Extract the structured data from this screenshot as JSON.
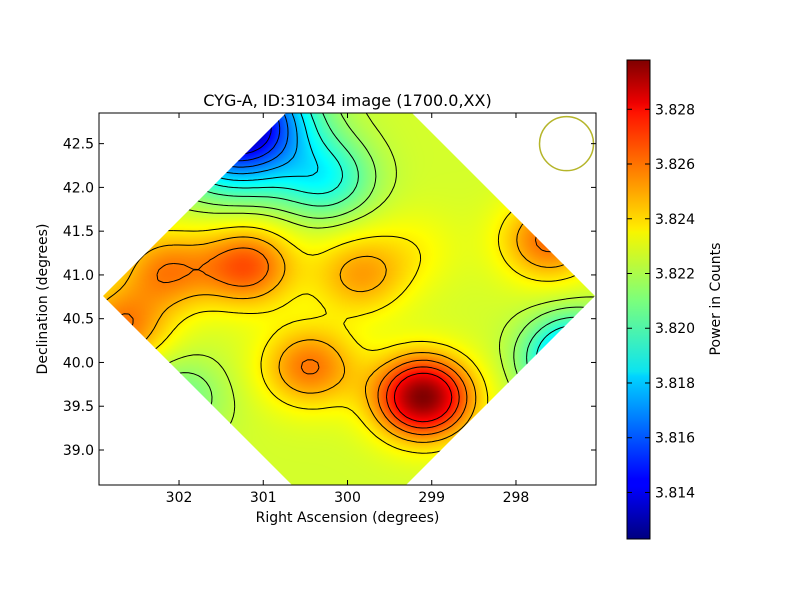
{
  "chart_data": {
    "type": "heatmap",
    "title": "CYG-A, ID:31034 image (1700.0,XX)",
    "xlabel": "Right Ascension (degrees)",
    "ylabel": "Declination (degrees)",
    "xlim": [
      302.95,
      297.05
    ],
    "ylim": [
      38.6,
      42.85
    ],
    "x_ticks": [
      302,
      301,
      300,
      299,
      298
    ],
    "x_tick_labels": [
      "302",
      "301",
      "300",
      "299",
      "298"
    ],
    "y_ticks": [
      39.0,
      39.5,
      40.0,
      40.5,
      41.0,
      41.5,
      42.0,
      42.5
    ],
    "y_tick_labels": [
      "39.0",
      "39.5",
      "40.0",
      "40.5",
      "41.0",
      "41.5",
      "42.0",
      "42.5"
    ],
    "colorbar": {
      "label": "Power in Counts",
      "range": [
        3.8123,
        3.8298
      ],
      "ticks": [
        3.814,
        3.816,
        3.818,
        3.82,
        3.822,
        3.824,
        3.826,
        3.828
      ],
      "tick_labels": [
        "3.814",
        "3.816",
        "3.818",
        "3.820",
        "3.822",
        "3.824",
        "3.826",
        "3.828"
      ],
      "colormap": "jet"
    },
    "contour_levels": [
      3.8145,
      3.8155,
      3.8165,
      3.8175,
      3.8185,
      3.8195,
      3.8205,
      3.8215,
      3.8222,
      3.8235,
      3.8245,
      3.8255,
      3.8265,
      3.8275
    ],
    "footprint": "diamond",
    "beam_marker": {
      "ra": 297.4,
      "dec": 42.5,
      "color": "#b5b52a"
    },
    "features": [
      {
        "kind": "minimum",
        "ra": 301.3,
        "dec": 42.7,
        "value": 3.8123
      },
      {
        "kind": "minimum",
        "ra": 297.3,
        "dec": 40.05,
        "value": 3.8165
      },
      {
        "kind": "maximum",
        "ra": 299.1,
        "dec": 39.6,
        "value": 3.8298
      },
      {
        "kind": "maximum",
        "ra": 301.2,
        "dec": 41.1,
        "value": 3.8262
      },
      {
        "kind": "maximum",
        "ra": 297.6,
        "dec": 41.4,
        "value": 3.8258
      },
      {
        "kind": "maximum",
        "ra": 302.15,
        "dec": 41.05,
        "value": 3.8253
      },
      {
        "kind": "maximum",
        "ra": 300.45,
        "dec": 39.95,
        "value": 3.8256
      },
      {
        "kind": "maximum",
        "ra": 299.85,
        "dec": 41.0,
        "value": 3.8248
      },
      {
        "kind": "maximum",
        "ra": 302.7,
        "dec": 40.4,
        "value": 3.8255
      },
      {
        "kind": "minimum",
        "ra": 302.0,
        "dec": 39.6,
        "value": 3.8208
      },
      {
        "kind": "minimum",
        "ra": 300.25,
        "dec": 42.1,
        "value": 3.8195
      },
      {
        "kind": "maximum",
        "ra": 299.2,
        "dec": 41.3,
        "value": 3.8232
      }
    ]
  }
}
